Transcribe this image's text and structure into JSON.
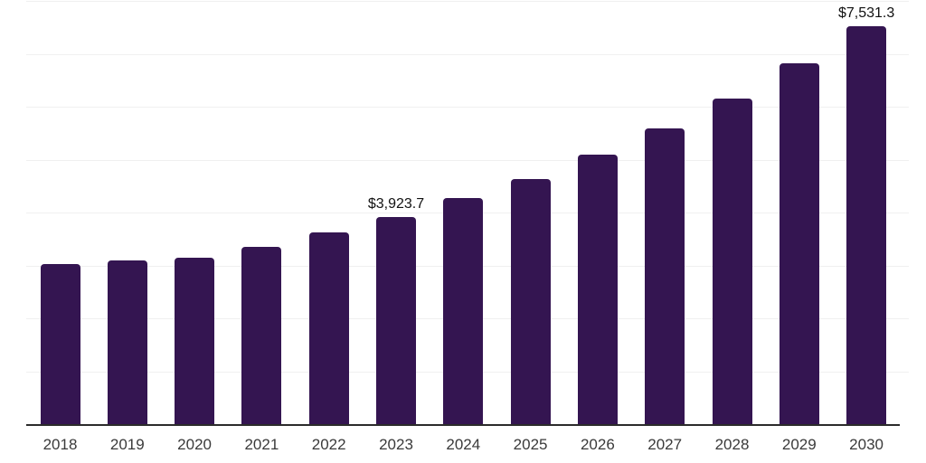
{
  "chart_data": {
    "type": "bar",
    "title": "",
    "xlabel": "",
    "ylabel": "",
    "categories": [
      "2018",
      "2019",
      "2020",
      "2021",
      "2022",
      "2023",
      "2024",
      "2025",
      "2026",
      "2027",
      "2028",
      "2029",
      "2030"
    ],
    "values": [
      3040,
      3115,
      3170,
      3370,
      3640,
      3923.7,
      4285,
      4645,
      5110,
      5610,
      6175,
      6830,
      7531.3
    ],
    "ylim": [
      0,
      8000
    ],
    "gridline_step": 1000,
    "grid": true,
    "legend": "none",
    "y_axis_labels_visible": false,
    "annotations": [
      {
        "category": "2023",
        "label": "$3,923.7"
      },
      {
        "category": "2030",
        "label": "$7,531.3"
      }
    ],
    "colors": {
      "bar": "#341551",
      "grid": "#f0f0f0",
      "axis": "#2b2b2b",
      "tick_label": "#3a3a3a",
      "value_label": "#111111",
      "background": "#ffffff"
    }
  }
}
